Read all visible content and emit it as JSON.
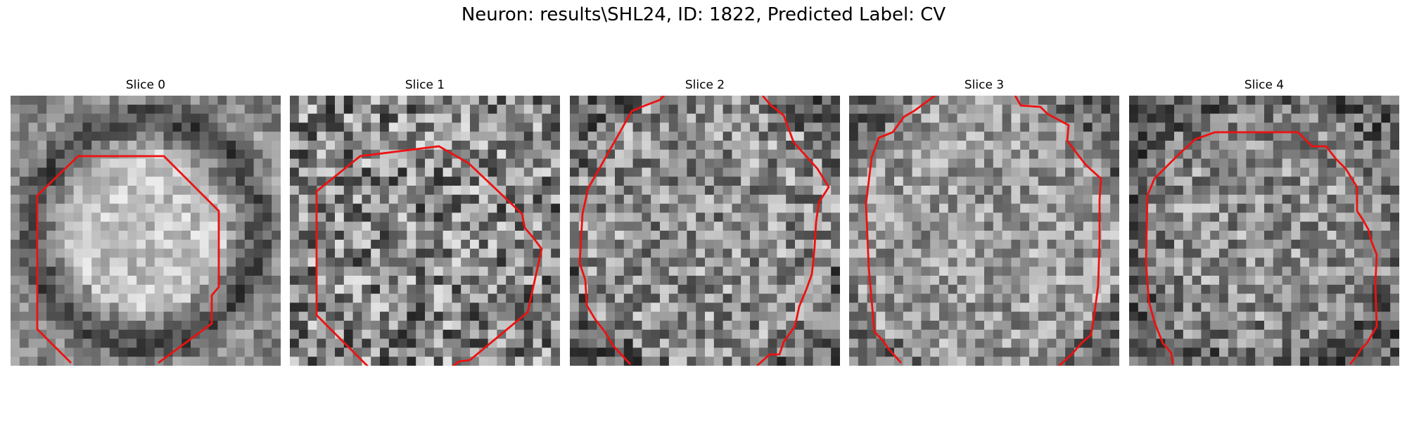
{
  "figure": {
    "title": "Neuron: results\\SHL24, ID: 1822, Predicted Label: CV"
  },
  "slices": [
    {
      "title": "Slice 0"
    },
    {
      "title": "Slice 1"
    },
    {
      "title": "Slice 2"
    },
    {
      "title": "Slice 3"
    },
    {
      "title": "Slice 4"
    }
  ],
  "colors": {
    "contour": "#ee1111",
    "background": "#ffffff"
  }
}
